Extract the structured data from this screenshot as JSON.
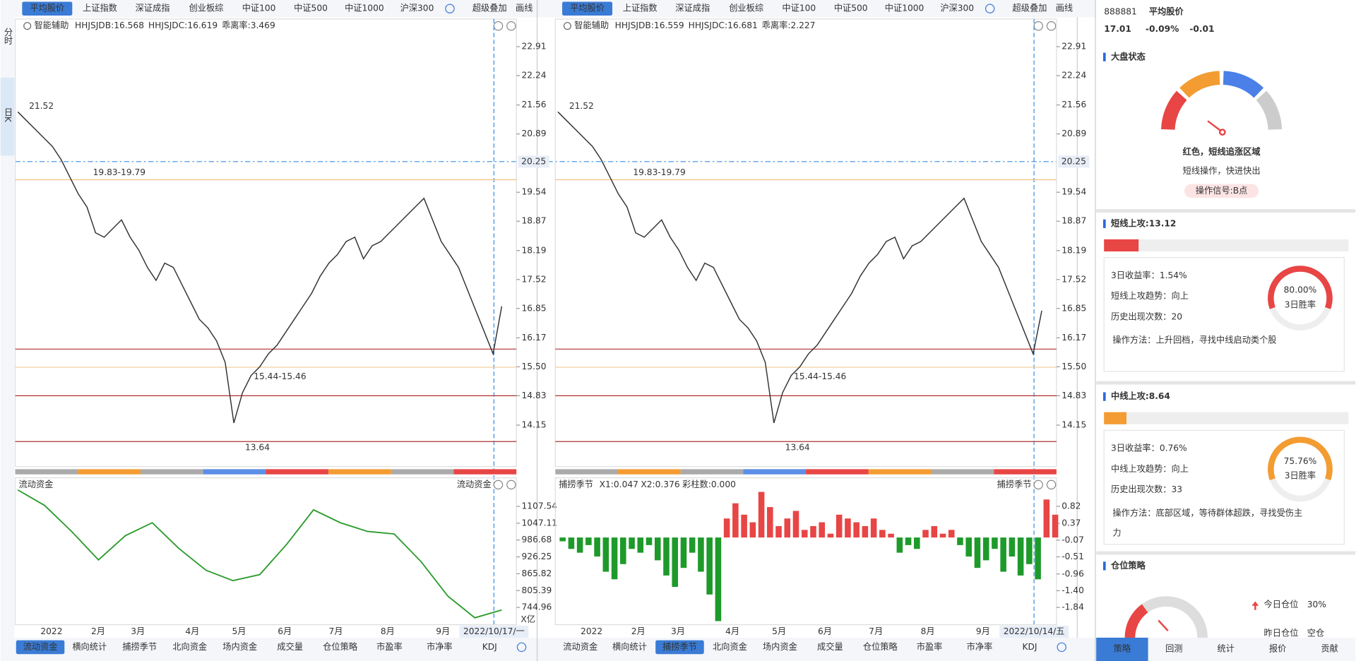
{
  "side_tabs": [
    "分时",
    "日K"
  ],
  "charts": [
    {
      "top_tabs": [
        "平均股价",
        "上证指数",
        "深证成指",
        "创业板综",
        "中证100",
        "中证500",
        "中证1000",
        "沪深300"
      ],
      "top_extra": [
        "超级叠加",
        "画线"
      ],
      "indicator": {
        "name": "智能辅助",
        "items": [
          {
            "text": "HHJSJDB:16.568",
            "color": "#e09a1e"
          },
          {
            "text": "HHJSJDC:16.619",
            "color": "#d83a3a"
          },
          {
            "text": "乖离率:3.469",
            "color": "#e09a1e"
          }
        ]
      },
      "price": {
        "ticks": [
          "22.91",
          "22.24",
          "21.56",
          "20.89",
          "19.54",
          "18.87",
          "18.19",
          "17.52",
          "16.85",
          "16.17",
          "15.50",
          "14.83",
          "14.15"
        ],
        "crosshair": "20.25",
        "annotations": [
          "21.52",
          "19.83-19.79",
          "15.44-15.46",
          "13.64"
        ],
        "closes": [
          21.4,
          21.2,
          21.0,
          20.8,
          20.6,
          20.3,
          19.9,
          19.5,
          19.2,
          18.6,
          18.5,
          18.7,
          18.9,
          18.5,
          18.2,
          17.8,
          17.5,
          17.9,
          17.8,
          17.4,
          17.0,
          16.6,
          16.4,
          16.1,
          15.6,
          14.2,
          14.9,
          15.3,
          15.5,
          15.8,
          16.0,
          16.3,
          16.6,
          16.9,
          17.2,
          17.6,
          17.9,
          18.1,
          18.4,
          18.5,
          18.0,
          18.3,
          18.4,
          18.6,
          18.8,
          19.0,
          19.2,
          19.4,
          18.9,
          18.4,
          18.1,
          17.8,
          17.3,
          16.8,
          16.3,
          15.8,
          16.9
        ]
      },
      "lower": {
        "type": "line",
        "title": "流动资金",
        "items": [],
        "ticks": [
          "1107.54",
          "1047.11",
          "986.68",
          "926.25",
          "865.82",
          "805.39",
          "744.96"
        ],
        "unit": "X亿",
        "values": [
          1166.4,
          1110.6,
          1017.7,
          915.4,
          1002.2,
          1048.7,
          955.7,
          878.3,
          841.1,
          862.8,
          971.2,
          1095.1,
          1048.7,
          1017.7,
          1008.4,
          909.2,
          785.2,
          707.8,
          735.7
        ]
      },
      "months": [
        "2022",
        "2月",
        "3月",
        "4月",
        "5月",
        "6月",
        "7月",
        "8月",
        "9月"
      ],
      "date": "2022/10/17/一",
      "bottom_tabs": [
        "流动资金",
        "横向统计",
        "捕捞季节",
        "北向资金",
        "场内资金",
        "成交量",
        "仓位策略",
        "市盈率",
        "市净率",
        "KDJ"
      ],
      "active_bottom_tab": 0
    },
    {
      "top_tabs": [
        "平均股价",
        "上证指数",
        "深证成指",
        "创业板综",
        "中证100",
        "中证500",
        "中证1000",
        "沪深300"
      ],
      "top_extra": [
        "超级叠加",
        "画线"
      ],
      "indicator": {
        "name": "智能辅助",
        "items": [
          {
            "text": "HHJSJDB:16.559",
            "color": "#e09a1e"
          },
          {
            "text": "HHJSJDC:16.681",
            "color": "#d83a3a"
          },
          {
            "text": "乖离率:2.227",
            "color": "#e09a1e"
          }
        ]
      },
      "price": {
        "ticks": [
          "22.91",
          "22.24",
          "21.56",
          "20.89",
          "19.54",
          "18.87",
          "18.19",
          "17.52",
          "16.85",
          "16.17",
          "15.50",
          "14.83",
          "14.15"
        ],
        "crosshair": "20.25",
        "annotations": [
          "21.52",
          "19.83-19.79",
          "15.44-15.46",
          "13.64"
        ],
        "closes": [
          21.4,
          21.2,
          21.0,
          20.8,
          20.6,
          20.3,
          19.9,
          19.5,
          19.2,
          18.6,
          18.5,
          18.7,
          18.9,
          18.5,
          18.2,
          17.8,
          17.5,
          17.9,
          17.8,
          17.4,
          17.0,
          16.6,
          16.4,
          16.1,
          15.6,
          14.2,
          14.9,
          15.3,
          15.5,
          15.8,
          16.0,
          16.3,
          16.6,
          16.9,
          17.2,
          17.6,
          17.9,
          18.1,
          18.4,
          18.5,
          18.0,
          18.3,
          18.4,
          18.6,
          18.8,
          19.0,
          19.2,
          19.4,
          18.9,
          18.4,
          18.1,
          17.8,
          17.3,
          16.8,
          16.3,
          15.8,
          16.8
        ]
      },
      "lower": {
        "type": "histogram",
        "title": "捕捞季节",
        "items": [
          {
            "text": "X1:0.047",
            "color": "#e09a1e"
          },
          {
            "text": "X2:0.376",
            "color": "#d020d0"
          },
          {
            "text": "彩柱数:0.000",
            "color": "#2a9a2a"
          }
        ],
        "ticks": [
          "0.82",
          "0.37",
          "-0.07",
          "-0.51",
          "-0.96",
          "-1.40",
          "-1.84"
        ],
        "values": [
          -0.1,
          -0.3,
          -0.4,
          -0.2,
          -0.5,
          -0.9,
          -1.1,
          -0.7,
          -0.3,
          -0.4,
          -0.2,
          -0.6,
          -1.0,
          -1.3,
          -0.8,
          -0.4,
          -0.9,
          -1.5,
          -2.2,
          0.5,
          0.9,
          0.6,
          0.4,
          1.2,
          0.8,
          0.3,
          0.5,
          0.7,
          0.2,
          0.3,
          0.4,
          0.1,
          0.6,
          0.5,
          0.4,
          0.3,
          0.5,
          0.2,
          0.1,
          -0.4,
          -0.2,
          -0.3,
          0.2,
          0.3,
          0.1,
          0.2,
          -0.2,
          -0.5,
          -0.8,
          -0.6,
          -0.3,
          -0.9,
          -0.5,
          -1.0,
          -0.7,
          -1.1,
          1.0,
          0.6
        ]
      },
      "months": [
        "2022",
        "2月",
        "3月",
        "4月",
        "5月",
        "6月",
        "7月",
        "8月",
        "9月"
      ],
      "date": "2022/10/14/五",
      "bottom_tabs": [
        "流动资金",
        "横向统计",
        "捕捞季节",
        "北向资金",
        "场内资金",
        "成交量",
        "仓位策略",
        "市盈率",
        "市净率",
        "KDJ"
      ],
      "active_bottom_tab": 2
    }
  ],
  "panel": {
    "code": "888881",
    "name": "平均股价",
    "price": "17.01",
    "change_pct": "-0.09%",
    "change": "-0.01",
    "market": {
      "title": "大盘状态",
      "state": "红色，短线追涨区域",
      "advice": "短线操作，快进快出",
      "signal": "操作信号:B点"
    },
    "short": {
      "title": "短线上攻:13.12",
      "rows": [
        "3日收益率：1.54%",
        "短线上攻趋势：向上",
        "历史出现次数：20"
      ],
      "method": [
        "操作方法：上升回档，寻找中线启动类个股"
      ],
      "rate": "80.00%",
      "rate_label": "3日胜率"
    },
    "mid": {
      "title": "中线上攻:8.64",
      "rows": [
        "3日收益率：0.76%",
        "中线上攻趋势：向上",
        "历史出现次数：33"
      ],
      "method": [
        "操作方法：底部区域，等待群体超跌，寻找受伤主",
        "力"
      ],
      "rate": "75.76%",
      "rate_label": "3日胜率"
    },
    "position": {
      "title": "仓位策略",
      "today_label": "今日仓位",
      "today": "30%",
      "yesterday_label": "昨日仓位",
      "yesterday": "空仓"
    },
    "tabs": [
      "策略",
      "回测",
      "统计",
      "报价",
      "贡献"
    ]
  }
}
